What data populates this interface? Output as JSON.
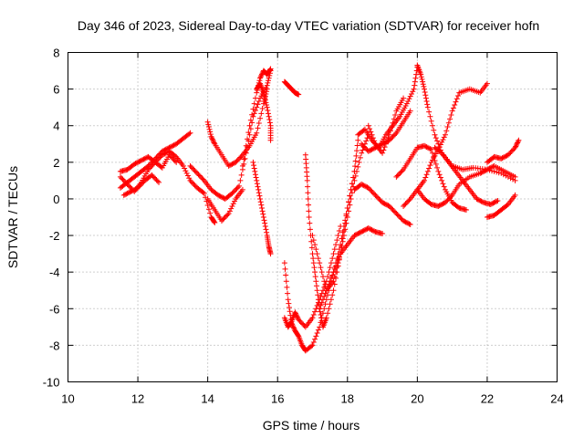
{
  "chart_data": {
    "type": "scatter",
    "title": "Day 346 of 2023, Sidereal Day-to-day VTEC variation (SDTVAR) for receiver hofn",
    "xlabel": "GPS time / hours",
    "ylabel": "SDTVAR / TECUs",
    "xlim": [
      10,
      24
    ],
    "ylim": [
      -10,
      8
    ],
    "xticks": [
      "10",
      "12",
      "14",
      "16",
      "18",
      "20",
      "22",
      "24"
    ],
    "yticks": [
      "-10",
      "-8",
      "-6",
      "-4",
      "-2",
      "0",
      "2",
      "4",
      "6",
      "8"
    ],
    "grid": true,
    "marker": "+",
    "color": "#ff0000",
    "series": [
      {
        "x": [
          11.5,
          11.7,
          11.9,
          12.1,
          12.3,
          12.5,
          12.7,
          12.9,
          13.1,
          13.3,
          13.5,
          13.7,
          13.9,
          14.1,
          14.2
        ],
        "y": [
          1.5,
          1.6,
          1.9,
          2.1,
          2.3,
          2.0,
          2.4,
          2.6,
          2.3,
          1.8,
          1.0,
          0.6,
          0.3,
          -1.0,
          -1.3
        ]
      },
      {
        "x": [
          11.5,
          11.7,
          11.9,
          12.1,
          12.3,
          12.5,
          12.7,
          12.9,
          13.1,
          13.3,
          13.5
        ],
        "y": [
          0.6,
          0.9,
          1.2,
          1.5,
          1.8,
          2.2,
          2.6,
          2.8,
          3.0,
          3.3,
          3.6
        ]
      },
      {
        "x": [
          11.5,
          11.7,
          11.9,
          12.1,
          12.3,
          12.5,
          12.7,
          12.9,
          13.1
        ],
        "y": [
          1.2,
          0.8,
          0.4,
          0.9,
          1.6,
          2.0,
          1.7,
          2.4,
          2.0
        ]
      },
      {
        "x": [
          11.6,
          11.8,
          12.0,
          12.2,
          12.4,
          12.6
        ],
        "y": [
          0.2,
          0.4,
          0.6,
          1.0,
          1.3,
          0.9
        ]
      },
      {
        "x": [
          13.5,
          13.7,
          13.9,
          14.1,
          14.3,
          14.5,
          14.7,
          14.9,
          15.1,
          15.3,
          15.5,
          15.7,
          15.8
        ],
        "y": [
          1.8,
          1.4,
          1.0,
          0.5,
          0.2,
          0.0,
          0.3,
          0.7,
          2.5,
          4.5,
          5.5,
          6.2,
          7.0
        ]
      },
      {
        "x": [
          14.0,
          14.1,
          14.2,
          14.4,
          14.6,
          14.8,
          15.0,
          15.2,
          15.4,
          15.6,
          15.7
        ],
        "y": [
          4.2,
          3.4,
          3.0,
          2.4,
          1.8,
          2.0,
          2.4,
          2.9,
          3.6,
          5.2,
          6.0
        ]
      },
      {
        "x": [
          14.0,
          14.2,
          14.4,
          14.6,
          14.8,
          15.0
        ],
        "y": [
          0.0,
          -0.6,
          -1.2,
          -0.8,
          0.0,
          0.5
        ]
      },
      {
        "x": [
          15.0,
          15.2,
          15.4,
          15.5,
          15.6,
          15.7,
          15.8
        ],
        "y": [
          1.8,
          4.0,
          5.8,
          6.6,
          7.0,
          6.8,
          7.1
        ]
      },
      {
        "x": [
          15.4,
          15.5,
          15.6,
          15.7,
          15.8,
          15.8
        ],
        "y": [
          6.0,
          6.3,
          5.8,
          5.0,
          4.0,
          3.2
        ]
      },
      {
        "x": [
          15.3,
          15.4,
          15.5,
          15.6,
          15.7,
          15.75,
          15.8
        ],
        "y": [
          2.0,
          1.0,
          0.0,
          -1.0,
          -2.0,
          -2.6,
          -3.0
        ]
      },
      {
        "x": [
          16.2,
          16.3,
          16.4,
          16.5,
          16.6
        ],
        "y": [
          6.4,
          6.2,
          6.0,
          5.8,
          5.7
        ]
      },
      {
        "x": [
          16.2,
          16.3,
          16.4,
          16.5,
          16.6,
          16.7,
          16.8,
          17.0,
          17.2,
          17.4,
          17.6,
          17.8,
          18.0,
          18.2,
          18.3
        ],
        "y": [
          -3.5,
          -5.5,
          -6.8,
          -7.2,
          -7.5,
          -8.0,
          -8.3,
          -8.0,
          -7.0,
          -5.5,
          -4.0,
          -2.5,
          -0.5,
          1.5,
          3.2
        ]
      },
      {
        "x": [
          16.2,
          16.3,
          16.4,
          16.5,
          16.6,
          16.8,
          17.0,
          17.2,
          17.4,
          17.6,
          17.8
        ],
        "y": [
          -6.5,
          -7.0,
          -6.7,
          -6.2,
          -6.6,
          -7.0,
          -6.5,
          -5.5,
          -4.5,
          -3.0,
          -1.5
        ]
      },
      {
        "x": [
          16.8,
          16.85,
          16.9,
          17.0,
          17.1,
          17.2,
          17.3,
          17.4,
          17.6,
          17.8,
          18.0,
          18.2
        ],
        "y": [
          2.4,
          1.0,
          -1.0,
          -3.0,
          -4.5,
          -6.0,
          -7.0,
          -6.5,
          -5.0,
          -3.0,
          -0.5,
          1.5
        ]
      },
      {
        "x": [
          17.2,
          17.4,
          17.6,
          17.8,
          18.0,
          18.2,
          18.4,
          18.6,
          18.8,
          19.0
        ],
        "y": [
          -6.0,
          -5.0,
          -4.0,
          -3.0,
          -2.5,
          -2.0,
          -1.8,
          -1.6,
          -1.8,
          -1.9
        ]
      },
      {
        "x": [
          17.0,
          17.2,
          17.4,
          17.6,
          17.8,
          18.0,
          18.2,
          18.4,
          18.6
        ],
        "y": [
          -2.0,
          -3.5,
          -5.0,
          -4.5,
          -3.0,
          -1.0,
          1.0,
          2.5,
          3.5
        ]
      },
      {
        "x": [
          18.3,
          18.5,
          18.7,
          18.9,
          19.1,
          19.3,
          19.5,
          19.7,
          19.9,
          20.0
        ],
        "y": [
          3.5,
          3.8,
          3.2,
          2.8,
          3.5,
          4.0,
          4.5,
          5.2,
          6.0,
          7.2
        ]
      },
      {
        "x": [
          18.6,
          18.8,
          19.0,
          19.2,
          19.4,
          19.6
        ],
        "y": [
          4.0,
          3.0,
          2.5,
          3.5,
          4.8,
          5.5
        ]
      },
      {
        "x": [
          18.2,
          18.4,
          18.6,
          18.8,
          19.0,
          19.2,
          19.4,
          19.6,
          19.8
        ],
        "y": [
          0.5,
          0.8,
          0.6,
          0.2,
          -0.2,
          -0.4,
          -0.8,
          -1.2,
          -1.4
        ]
      },
      {
        "x": [
          20.0,
          20.1,
          20.2,
          20.3,
          20.5,
          20.7,
          21.0,
          21.3,
          21.6,
          22.0,
          22.4,
          22.8
        ],
        "y": [
          7.3,
          6.8,
          6.0,
          5.0,
          3.5,
          2.5,
          1.8,
          1.6,
          1.7,
          1.6,
          1.4,
          1.0
        ]
      },
      {
        "x": [
          19.6,
          19.8,
          20.0,
          20.2,
          20.4,
          20.6,
          20.8,
          21.0,
          21.2,
          21.5,
          21.8,
          22.0
        ],
        "y": [
          -0.4,
          0.0,
          0.5,
          1.0,
          2.0,
          2.7,
          3.5,
          4.8,
          5.8,
          6.0,
          5.8,
          6.3
        ]
      },
      {
        "x": [
          20.0,
          20.2,
          20.4,
          20.6,
          20.8,
          21.0,
          21.2,
          21.5,
          21.8,
          22.0,
          22.2,
          22.5,
          22.8
        ],
        "y": [
          0.5,
          0.0,
          -0.3,
          -0.4,
          -0.2,
          0.2,
          0.8,
          1.2,
          1.4,
          1.6,
          1.8,
          1.5,
          1.2
        ]
      },
      {
        "x": [
          20.5,
          20.7,
          20.9,
          21.1,
          21.3,
          21.5,
          21.7,
          21.9,
          22.1,
          22.3
        ],
        "y": [
          2.8,
          2.5,
          2.0,
          1.5,
          1.0,
          0.5,
          0.0,
          -0.2,
          -0.3,
          -0.1
        ]
      },
      {
        "x": [
          19.4,
          19.6,
          19.8,
          20.0,
          20.2,
          20.4,
          20.6,
          20.8,
          21.0,
          21.2,
          21.4
        ],
        "y": [
          1.2,
          1.6,
          2.2,
          2.8,
          2.9,
          2.7,
          1.5,
          0.5,
          -0.2,
          -0.5,
          -0.6
        ]
      },
      {
        "x": [
          22.0,
          22.2,
          22.4,
          22.6,
          22.8,
          22.9
        ],
        "y": [
          2.0,
          2.3,
          2.2,
          2.4,
          2.8,
          3.2
        ]
      },
      {
        "x": [
          22.0,
          22.2,
          22.4,
          22.6,
          22.8
        ],
        "y": [
          -1.0,
          -0.9,
          -0.6,
          -0.3,
          0.2
        ]
      },
      {
        "x": [
          18.4,
          18.6,
          18.8,
          19.0,
          19.2,
          19.4,
          19.6,
          19.8
        ],
        "y": [
          3.0,
          2.6,
          2.8,
          3.0,
          3.2,
          3.6,
          4.2,
          4.8
        ]
      }
    ]
  }
}
